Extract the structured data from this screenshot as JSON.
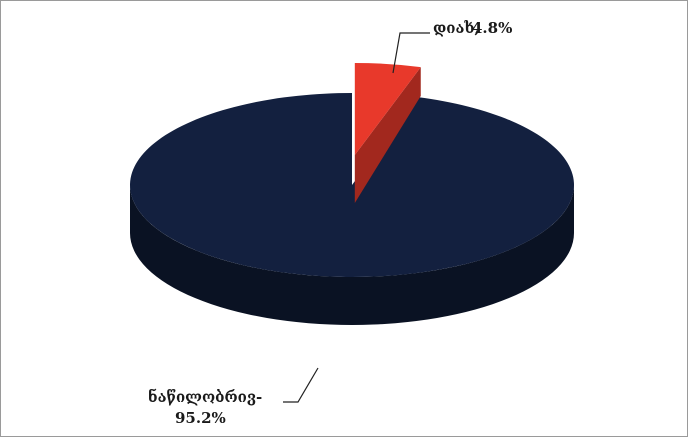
{
  "chart_data": {
    "type": "pie",
    "style": "3d-exploded",
    "title": "",
    "categories": [
      "დიახ",
      "ნაწილობრივ"
    ],
    "values": [
      4.8,
      95.2
    ],
    "unit": "%",
    "colors": [
      "#e8392b",
      "#13203f"
    ],
    "exploded": [
      "დიახ"
    ],
    "labels": [
      {
        "category": "დიახ",
        "name": "დიახ,",
        "value": "4.8%"
      },
      {
        "category": "ნაწილობრივ",
        "name": "ნაწილობრივ-",
        "value": "95.2%"
      }
    ],
    "legend": "none",
    "grid": false
  }
}
